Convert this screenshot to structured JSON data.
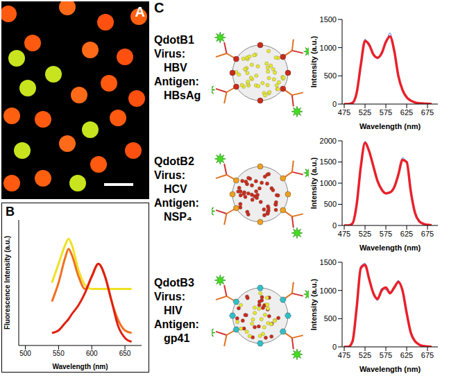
{
  "panel_labels": [
    "A",
    "B",
    "C"
  ],
  "probes": [
    {
      "name": "QdotB1",
      "virus_label": "Virus:",
      "virus": "HBV",
      "antigen_label": "Antigen:",
      "antigen": "HBsAg"
    },
    {
      "name": "QdotB2",
      "virus_label": "Virus:",
      "virus": "HCV",
      "antigen_label": "Antigen:",
      "antigen": "NSP₄"
    },
    {
      "name": "QdotB3",
      "virus_label": "Virus:",
      "virus": "HIV",
      "antigen_label": "Antigen:",
      "antigen": "gp41"
    }
  ],
  "chart_data": [
    {
      "type": "line",
      "x_label": "Wavelength (nm)",
      "y_label": "Fluorescence Intensity (a.u.)",
      "x": [
        540,
        550,
        560,
        565,
        570,
        580,
        590,
        600,
        610,
        620,
        630,
        640,
        650,
        660
      ],
      "xlim": [
        490,
        675
      ],
      "xticks": [
        500,
        550,
        600,
        650
      ],
      "ylim": [
        0,
        1
      ],
      "tick_labels": "x",
      "series": [
        {
          "color": "#f0e020",
          "values": [
            0.5,
            0.65,
            0.8,
            0.85,
            0.8,
            0.6,
            0.48,
            0.45,
            0.45,
            0.45,
            0.45,
            0.45,
            0.45,
            0.45
          ]
        },
        {
          "color": "#f07020",
          "values": [
            0.35,
            0.5,
            0.7,
            0.77,
            0.72,
            0.55,
            0.45,
            0.55,
            0.65,
            0.55,
            0.35,
            0.2,
            0.12,
            0.1
          ]
        },
        {
          "color": "#e02010",
          "values": [
            0.1,
            0.12,
            0.18,
            0.21,
            0.25,
            0.32,
            0.42,
            0.55,
            0.65,
            0.55,
            0.35,
            0.15,
            0.06,
            0.03
          ]
        }
      ]
    },
    {
      "type": "line",
      "x_label": "Wavelength (nm)",
      "y_label": "Intensity (a.u.)",
      "x": [
        475,
        485,
        495,
        505,
        515,
        525,
        535,
        545,
        555,
        565,
        575,
        585,
        595,
        605,
        615,
        625,
        635,
        645,
        655,
        665,
        675,
        685
      ],
      "xlim": [
        470,
        700
      ],
      "xticks": [
        475,
        525,
        575,
        625,
        675
      ],
      "ylim": [
        0,
        1500
      ],
      "yticks": [
        0,
        500,
        1000,
        1500
      ],
      "series": [
        {
          "color": "#3a6fe0",
          "values": [
            10,
            0,
            40,
            180,
            720,
            1150,
            1020,
            900,
            800,
            930,
            1080,
            1260,
            930,
            520,
            230,
            140,
            50,
            40,
            10,
            20,
            0,
            5
          ]
        },
        {
          "color": "#e8202a",
          "values": [
            0,
            0,
            20,
            200,
            700,
            1120,
            1050,
            880,
            820,
            900,
            1100,
            1200,
            950,
            500,
            250,
            120,
            60,
            30,
            15,
            10,
            5,
            0
          ]
        }
      ]
    },
    {
      "type": "line",
      "x_label": "Wavelength (nm)",
      "y_label": "Intensity (a.u.)",
      "x": [
        475,
        485,
        495,
        505,
        515,
        525,
        535,
        545,
        555,
        565,
        575,
        585,
        595,
        605,
        615,
        625,
        635,
        645,
        655,
        665,
        675,
        685
      ],
      "xlim": [
        470,
        700
      ],
      "xticks": [
        475,
        525,
        575,
        625,
        675
      ],
      "ylim": [
        0,
        2000
      ],
      "yticks": [
        0,
        500,
        1000,
        1500,
        2000
      ],
      "series": [
        {
          "color": "#3a6fe0",
          "values": [
            5,
            10,
            40,
            520,
            1380,
            1990,
            1720,
            1430,
            1020,
            870,
            740,
            800,
            880,
            1230,
            1600,
            1470,
            820,
            280,
            110,
            30,
            20,
            0
          ]
        },
        {
          "color": "#e8202a",
          "values": [
            0,
            0,
            50,
            500,
            1400,
            1950,
            1750,
            1400,
            1050,
            850,
            760,
            780,
            900,
            1200,
            1550,
            1500,
            800,
            300,
            100,
            40,
            15,
            5
          ]
        }
      ]
    },
    {
      "type": "line",
      "x_label": "Wavelength (nm)",
      "y_label": "Intensity (a.u.)",
      "x": [
        475,
        485,
        495,
        505,
        515,
        525,
        535,
        545,
        555,
        565,
        575,
        585,
        595,
        605,
        615,
        625,
        635,
        645,
        655,
        665,
        675,
        685
      ],
      "xlim": [
        470,
        700
      ],
      "xticks": [
        475,
        525,
        575,
        625,
        675
      ],
      "ylim": [
        0,
        1500
      ],
      "yticks": [
        0,
        500,
        1000,
        1500
      ],
      "series": [
        {
          "color": "#3a6fe0",
          "values": [
            0,
            10,
            120,
            680,
            1430,
            1480,
            1170,
            980,
            820,
            1040,
            1010,
            980,
            1020,
            1180,
            970,
            630,
            230,
            120,
            30,
            20,
            0,
            10
          ]
        },
        {
          "color": "#e8202a",
          "values": [
            0,
            0,
            100,
            700,
            1400,
            1450,
            1200,
            950,
            850,
            1000,
            1050,
            950,
            1050,
            1150,
            1000,
            600,
            250,
            100,
            40,
            15,
            5,
            0
          ]
        }
      ]
    }
  ]
}
